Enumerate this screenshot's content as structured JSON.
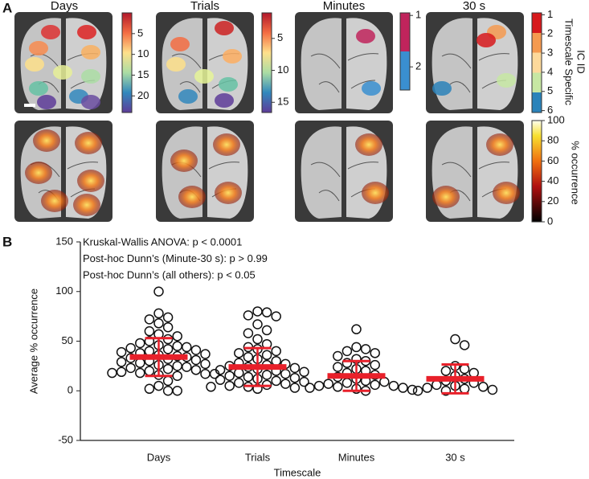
{
  "panel_a": {
    "label": "A",
    "titles": [
      "Days",
      "Trials",
      "Minutes",
      "30 s"
    ],
    "id_label": [
      "Timescale Specific",
      "IC ID"
    ],
    "occurrence_label": "% occurrence",
    "colorbars": [
      {
        "lim": [
          0,
          24
        ],
        "ticks": [
          5,
          10,
          15,
          20
        ]
      },
      {
        "lim": [
          1,
          16.6
        ],
        "ticks": [
          5,
          10,
          15
        ]
      },
      {
        "lim": [
          0.95,
          2.45
        ],
        "ticks": [
          1,
          2
        ]
      },
      {
        "lim": [
          0.9,
          6.1
        ],
        "ticks": [
          1,
          2,
          3,
          4,
          5,
          6
        ]
      },
      {
        "lim": [
          0,
          100
        ],
        "ticks": [
          0,
          20,
          40,
          60,
          80,
          100
        ]
      }
    ]
  },
  "chart_data": {
    "type": "dot",
    "label": "B",
    "annotations": [
      "Kruskal-Wallis ANOVA: p < 0.0001",
      "Post-hoc Dunn’s (Minute-30 s): p > 0.99",
      "Post-hoc Dunn’s (all others): p < 0.05"
    ],
    "categories": [
      "Days",
      "Trials",
      "Minutes",
      "30 s"
    ],
    "points": [
      [
        100,
        78,
        74,
        72,
        68,
        64,
        60,
        57,
        55,
        52,
        50,
        48,
        46,
        45,
        44,
        43,
        42,
        41,
        40,
        39,
        38,
        37,
        36,
        35,
        34,
        33,
        32,
        31,
        30,
        29,
        28,
        27,
        26,
        25,
        24,
        23,
        22,
        21,
        20,
        19,
        18,
        18,
        17,
        17,
        16,
        15,
        10,
        5,
        2,
        0,
        0
      ],
      [
        80,
        79,
        76,
        75,
        67,
        61,
        58,
        52,
        47,
        44,
        42,
        40,
        38,
        36,
        34,
        32,
        30,
        28,
        27,
        26,
        25,
        24,
        23,
        22,
        21,
        20,
        19,
        18,
        17,
        16,
        15,
        14,
        13,
        12,
        11,
        10,
        9,
        8,
        7,
        6,
        5,
        4,
        4,
        3,
        2
      ],
      [
        62,
        44,
        42,
        40,
        38,
        35,
        32,
        30,
        28,
        26,
        24,
        22,
        20,
        18,
        16,
        14,
        12,
        10,
        9,
        8,
        7,
        6,
        5,
        5,
        4,
        3,
        3,
        2,
        1,
        0
      ],
      [
        52,
        46,
        25,
        22,
        20,
        18,
        15,
        12,
        10,
        8,
        6,
        5,
        4,
        3,
        2,
        1,
        0,
        0
      ]
    ],
    "mean": [
      34,
      24,
      15,
      12
    ],
    "sd": [
      19,
      19,
      15,
      14.5
    ],
    "color": "#e8202a",
    "ylim": [
      -50,
      150
    ],
    "yticks": [
      -50,
      0,
      50,
      100,
      150
    ],
    "ylabel": "Average % occurrence",
    "xlabel": "Timescale"
  }
}
